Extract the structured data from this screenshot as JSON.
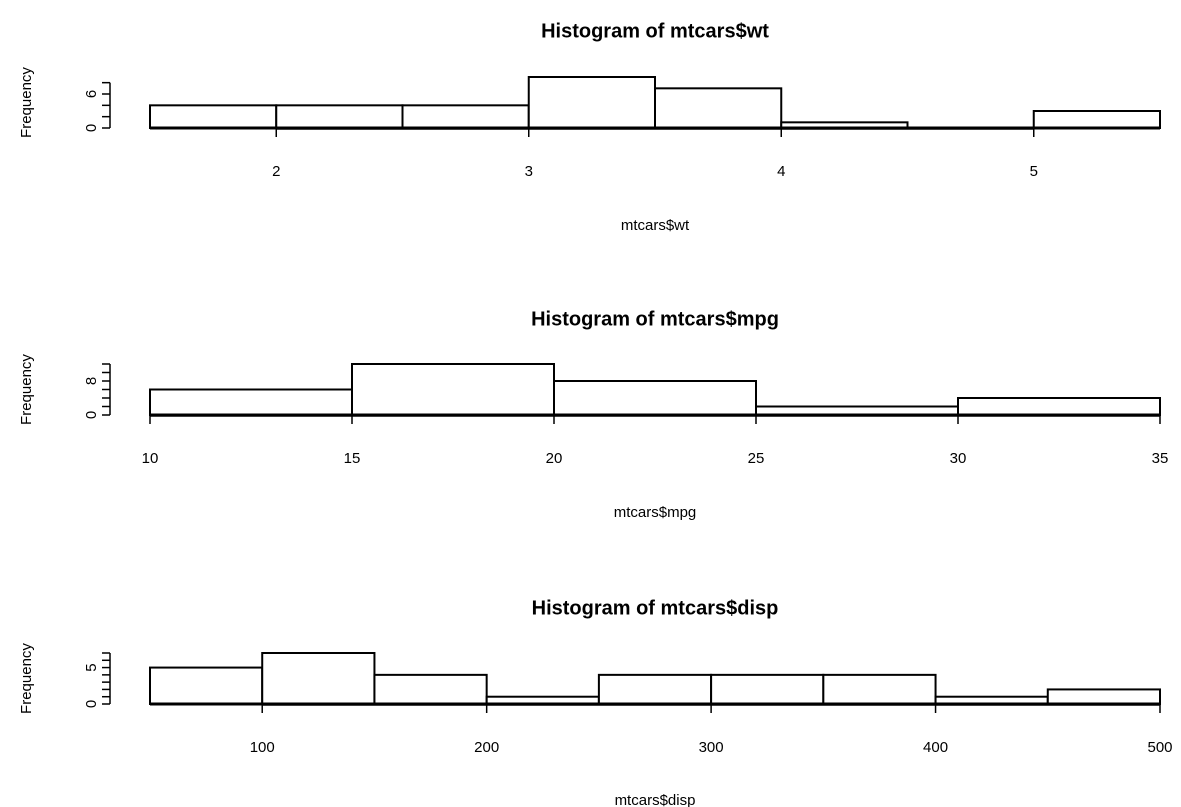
{
  "chart_data": [
    {
      "type": "bar",
      "title": "Histogram of mtcars$wt",
      "xlabel": "mtcars$wt",
      "ylabel": "Frequency",
      "bins": [
        [
          1.5,
          2.0
        ],
        [
          2.0,
          2.5
        ],
        [
          2.5,
          3.0
        ],
        [
          3.0,
          3.5
        ],
        [
          3.5,
          4.0
        ],
        [
          4.0,
          4.5
        ],
        [
          4.5,
          5.0
        ],
        [
          5.0,
          5.5
        ]
      ],
      "values": [
        4,
        4,
        4,
        9,
        7,
        1,
        0,
        3
      ],
      "xlim": [
        1.5,
        5.5
      ],
      "ylim": [
        0,
        9
      ],
      "x_ticks": [
        2,
        3,
        4,
        5
      ],
      "y_ticks": [
        0,
        6
      ],
      "y_minor_ticks": [
        0,
        2,
        4,
        6,
        8
      ]
    },
    {
      "type": "bar",
      "title": "Histogram of mtcars$mpg",
      "xlabel": "mtcars$mpg",
      "ylabel": "Frequency",
      "bins": [
        [
          10,
          15
        ],
        [
          15,
          20
        ],
        [
          20,
          25
        ],
        [
          25,
          30
        ],
        [
          30,
          35
        ]
      ],
      "values": [
        6,
        12,
        8,
        2,
        4
      ],
      "xlim": [
        10,
        35
      ],
      "ylim": [
        0,
        12
      ],
      "x_ticks": [
        10,
        15,
        20,
        25,
        30,
        35
      ],
      "y_ticks": [
        0,
        8
      ],
      "y_minor_ticks": [
        0,
        2,
        4,
        6,
        8,
        10,
        12
      ]
    },
    {
      "type": "bar",
      "title": "Histogram of mtcars$disp",
      "xlabel": "mtcars$disp",
      "ylabel": "Frequency",
      "bins": [
        [
          50,
          100
        ],
        [
          100,
          150
        ],
        [
          150,
          200
        ],
        [
          200,
          250
        ],
        [
          250,
          300
        ],
        [
          300,
          350
        ],
        [
          350,
          400
        ],
        [
          400,
          450
        ],
        [
          450,
          500
        ]
      ],
      "values": [
        5,
        7,
        4,
        1,
        4,
        4,
        4,
        1,
        2
      ],
      "xlim": [
        50,
        500
      ],
      "ylim": [
        0,
        7
      ],
      "x_ticks": [
        100,
        200,
        300,
        400,
        500
      ],
      "y_ticks": [
        0,
        5
      ],
      "y_minor_ticks": [
        0,
        1,
        2,
        3,
        4,
        5,
        6,
        7
      ]
    }
  ]
}
